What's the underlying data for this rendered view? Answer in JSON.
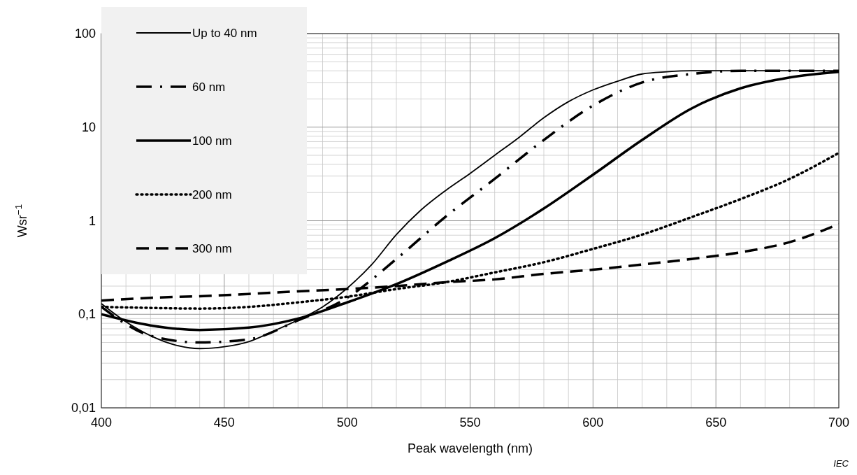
{
  "chart_data": {
    "type": "line",
    "xlabel": "Peak wavelength  (nm)",
    "ylabel": "Wsr$^{−1}$",
    "xlim": [
      400,
      700
    ],
    "xticks": [
      400,
      450,
      500,
      550,
      600,
      650,
      700
    ],
    "ylim": [
      0.01,
      100
    ],
    "yticks": [
      {
        "value": 0.01,
        "label": "0,01"
      },
      {
        "value": 0.1,
        "label": "0,1"
      },
      1,
      10,
      100
    ],
    "log": "y",
    "grid": true,
    "legend": "top left",
    "marker": "none",
    "x": [
      400,
      420,
      440,
      460,
      480,
      500,
      520,
      540,
      560,
      580,
      600,
      620,
      640,
      660,
      680,
      700
    ],
    "series": [
      {
        "name": "Up to 40 nm",
        "color": "#000000",
        "line_style": "solid",
        "x": [
          400,
          410,
          420,
          430,
          440,
          450,
          460,
          470,
          480,
          490,
          500,
          510,
          520,
          530,
          540,
          550,
          560,
          570,
          580,
          590,
          600,
          610,
          620,
          630,
          640,
          660,
          700
        ],
        "values": [
          0.13,
          0.083,
          0.059,
          0.047,
          0.043,
          0.045,
          0.051,
          0.066,
          0.087,
          0.12,
          0.19,
          0.34,
          0.71,
          1.3,
          2.1,
          3.2,
          5.0,
          7.8,
          12.6,
          18.7,
          25,
          31,
          37,
          39,
          40,
          40,
          40
        ]
      },
      {
        "name": "60 nm",
        "color": "#000000",
        "line_style": "dashdot",
        "values": [
          0.12,
          0.059,
          0.05,
          0.054,
          0.086,
          0.15,
          0.39,
          1.1,
          2.8,
          7.3,
          17,
          30,
          37,
          40,
          40,
          40
        ]
      },
      {
        "name": "100 nm",
        "color": "#000000",
        "line_style": "solid",
        "values": [
          0.1,
          0.076,
          0.068,
          0.072,
          0.09,
          0.134,
          0.21,
          0.36,
          0.65,
          1.35,
          3.1,
          7.3,
          15.8,
          26,
          34,
          39
        ]
      },
      {
        "name": "200 nm",
        "color": "#000000",
        "line_style": "dotted",
        "values": [
          0.12,
          0.117,
          0.115,
          0.12,
          0.134,
          0.154,
          0.186,
          0.22,
          0.28,
          0.36,
          0.5,
          0.71,
          1.09,
          1.7,
          2.8,
          5.3
        ]
      },
      {
        "name": "300 nm",
        "color": "#000000",
        "line_style": "dashed",
        "values": [
          0.14,
          0.15,
          0.156,
          0.165,
          0.176,
          0.186,
          0.2,
          0.22,
          0.236,
          0.27,
          0.3,
          0.34,
          0.39,
          0.46,
          0.59,
          0.92
        ]
      }
    ],
    "annotations": [
      "IEC"
    ]
  }
}
